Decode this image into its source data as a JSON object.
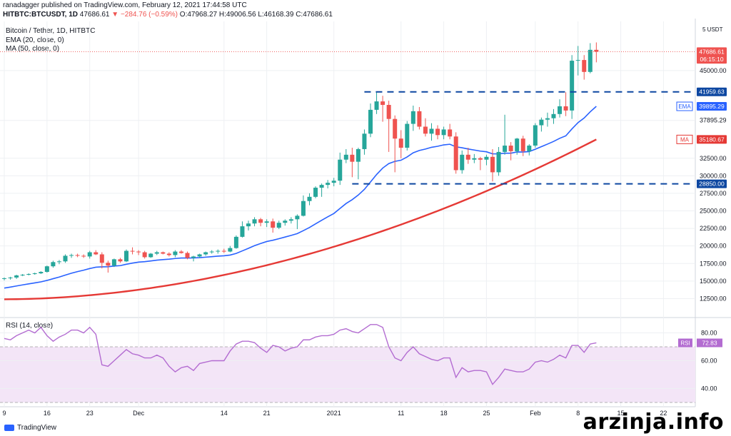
{
  "header": {
    "publisher_line": "ranadagger published on TradingView.com, February 12, 2021 17:44:58 UTC",
    "symbol": "HITBTC:BTCUSDT, 1D",
    "last": "47686.61",
    "change": "▼ −284.76 (−0.59%)",
    "o": "O:47968.27",
    "h": "H:49006.56",
    "l": "L:46168.39",
    "c": "C:47686.61"
  },
  "legend": {
    "title": "Bitcoin / Tether, 1D, HITBTC",
    "ema": "EMA (20, close, 0)",
    "ma": "MA (50, close, 0)",
    "rsi": "RSI (14, close)"
  },
  "colors": {
    "up": "#26a69a",
    "down": "#ef5350",
    "ema": "#2962ff",
    "ma": "#e53935",
    "support_line": "#0d47a1",
    "rsi_line": "#b36cd1",
    "rsi_band": "#f3e5f7",
    "grid": "#eef0f3"
  },
  "chart_data": [
    {
      "type": "candlestick",
      "title": "Bitcoin / Tether, 1D, HITBTC",
      "currency": "USDT",
      "ylim": [
        10000,
        52000
      ],
      "yticks": [
        12500,
        15000,
        17500,
        20000,
        22500,
        25000,
        27500,
        30000,
        32500,
        37895.29,
        45000
      ],
      "ytick_labels": [
        "12500.00",
        "15000.00",
        "17500.00",
        "20000.00",
        "22500.00",
        "25000.00",
        "27500.00",
        "30000.00",
        "32500.00",
        "37895.29",
        "45000.00"
      ],
      "xtick_labels": [
        "9",
        "16",
        "23",
        "Dec",
        "14",
        "21",
        "2021",
        "11",
        "18",
        "25",
        "Feb",
        "8",
        "15",
        "22"
      ],
      "xtick_index": [
        0,
        7,
        14,
        22,
        36,
        43,
        54,
        65,
        72,
        79,
        87,
        94,
        101,
        108
      ],
      "price_labels": [
        {
          "text": "47686.61",
          "value": 47686.61,
          "color": "#ef5350"
        },
        {
          "text": "06:15:10",
          "value": 46600,
          "color": "#ef5350"
        },
        {
          "text": "41959.63",
          "value": 41959.63,
          "color": "#0d47a1"
        },
        {
          "text": "39895.29",
          "value": 39895.29,
          "color": "#2962ff"
        },
        {
          "text": "35180.67",
          "value": 35180.67,
          "color": "#e53935"
        },
        {
          "text": "28850.00",
          "value": 28850,
          "color": "#0d47a1"
        }
      ],
      "series_tags": [
        {
          "text": "EMA",
          "value": 39895.29,
          "color": "#2962ff"
        },
        {
          "text": "MA",
          "value": 35180.67,
          "color": "#e53935"
        }
      ],
      "horizontal_lines": [
        {
          "value": 41959.63,
          "from_index": 59,
          "style": "dashed"
        },
        {
          "value": 28850,
          "from_index": 57,
          "style": "dashed"
        }
      ],
      "candles": [
        [
          15300,
          15500,
          15100,
          15400
        ],
        [
          15400,
          15600,
          15200,
          15500
        ],
        [
          15500,
          15900,
          15300,
          15800
        ],
        [
          15800,
          16000,
          15700,
          15900
        ],
        [
          15900,
          16100,
          15800,
          16000
        ],
        [
          16000,
          16200,
          15900,
          16100
        ],
        [
          16100,
          16400,
          16000,
          16300
        ],
        [
          16300,
          17200,
          16200,
          17100
        ],
        [
          17100,
          17900,
          16900,
          17700
        ],
        [
          17700,
          18000,
          17400,
          17800
        ],
        [
          17800,
          18800,
          17600,
          18600
        ],
        [
          18600,
          18900,
          18300,
          18700
        ],
        [
          18700,
          18900,
          18400,
          18600
        ],
        [
          18600,
          18800,
          18300,
          18500
        ],
        [
          18500,
          19300,
          18200,
          19100
        ],
        [
          19100,
          19400,
          18700,
          18800
        ],
        [
          18800,
          19100,
          16800,
          17600
        ],
        [
          17600,
          17900,
          16200,
          17200
        ],
        [
          17200,
          18200,
          17000,
          18100
        ],
        [
          18100,
          18300,
          17600,
          17800
        ],
        [
          17800,
          19500,
          17700,
          19300
        ],
        [
          19300,
          19800,
          18800,
          19200
        ],
        [
          19200,
          19400,
          18700,
          19100
        ],
        [
          19100,
          19300,
          18200,
          18400
        ],
        [
          18400,
          19000,
          18300,
          18900
        ],
        [
          18900,
          19300,
          18700,
          19100
        ],
        [
          19100,
          19200,
          18800,
          18900
        ],
        [
          18900,
          19100,
          18500,
          18700
        ],
        [
          18700,
          19400,
          18400,
          19200
        ],
        [
          19200,
          19400,
          18900,
          19000
        ],
        [
          19000,
          19200,
          18100,
          18300
        ],
        [
          18300,
          18600,
          17800,
          18500
        ],
        [
          18500,
          18900,
          18300,
          18800
        ],
        [
          18800,
          19200,
          18600,
          19100
        ],
        [
          19100,
          19400,
          18900,
          19200
        ],
        [
          19200,
          19500,
          18900,
          19300
        ],
        [
          19300,
          19600,
          19000,
          19200
        ],
        [
          19200,
          20000,
          19100,
          19700
        ],
        [
          19700,
          21500,
          19600,
          21300
        ],
        [
          21300,
          23500,
          21200,
          22800
        ],
        [
          22800,
          23600,
          22200,
          23200
        ],
        [
          23200,
          24100,
          22800,
          23800
        ],
        [
          23800,
          24000,
          22800,
          23300
        ],
        [
          23300,
          23800,
          22700,
          23500
        ],
        [
          23500,
          23900,
          21900,
          22600
        ],
        [
          22600,
          23600,
          22400,
          23300
        ],
        [
          23300,
          23800,
          22900,
          23600
        ],
        [
          23600,
          24100,
          23200,
          23800
        ],
        [
          23800,
          24500,
          22400,
          24300
        ],
        [
          24300,
          27200,
          24200,
          26400
        ],
        [
          26400,
          27500,
          25800,
          27000
        ],
        [
          27000,
          28500,
          26800,
          28300
        ],
        [
          28300,
          28900,
          27000,
          28700
        ],
        [
          28700,
          29400,
          28200,
          29000
        ],
        [
          29000,
          29700,
          28500,
          29300
        ],
        [
          29300,
          33300,
          28700,
          32300
        ],
        [
          32300,
          33800,
          31800,
          33000
        ],
        [
          33000,
          34000,
          29800,
          32000
        ],
        [
          32000,
          34000,
          29500,
          33800
        ],
        [
          33800,
          36600,
          33000,
          36000
        ],
        [
          36000,
          40300,
          35500,
          39400
        ],
        [
          39400,
          41900,
          38800,
          40600
        ],
        [
          40600,
          41400,
          37700,
          40100
        ],
        [
          40100,
          40700,
          33400,
          38100
        ],
        [
          38100,
          38600,
          30500,
          35300
        ],
        [
          35300,
          36500,
          32500,
          34000
        ],
        [
          34000,
          37800,
          33600,
          37400
        ],
        [
          37400,
          40000,
          36400,
          39200
        ],
        [
          39200,
          39800,
          36600,
          37000
        ],
        [
          37000,
          38200,
          35600,
          36000
        ],
        [
          36000,
          37500,
          35000,
          36700
        ],
        [
          36700,
          37200,
          35200,
          35800
        ],
        [
          35800,
          37000,
          35200,
          36600
        ],
        [
          36600,
          37400,
          35200,
          35600
        ],
        [
          35600,
          36200,
          30300,
          30800
        ],
        [
          30800,
          33600,
          30300,
          33000
        ],
        [
          33000,
          34000,
          31700,
          32300
        ],
        [
          32300,
          33100,
          31800,
          32500
        ],
        [
          32500,
          32700,
          30800,
          32300
        ],
        [
          32300,
          33000,
          31500,
          32700
        ],
        [
          32700,
          33800,
          29200,
          30500
        ],
        [
          30500,
          34100,
          30000,
          33400
        ],
        [
          33400,
          38700,
          33000,
          34300
        ],
        [
          34300,
          34800,
          32200,
          33500
        ],
        [
          33500,
          35400,
          33000,
          35300
        ],
        [
          35300,
          35700,
          32800,
          33500
        ],
        [
          33500,
          34500,
          32900,
          34300
        ],
        [
          34300,
          37500,
          34000,
          37200
        ],
        [
          37200,
          38300,
          36300,
          38000
        ],
        [
          38000,
          39000,
          37000,
          38200
        ],
        [
          38200,
          39500,
          37400,
          38800
        ],
        [
          38800,
          40900,
          38300,
          39900
        ],
        [
          39900,
          41900,
          38500,
          39300
        ],
        [
          39300,
          47200,
          38100,
          46400
        ],
        [
          46400,
          48500,
          44300,
          46500
        ],
        [
          46500,
          47200,
          43700,
          44800
        ],
        [
          44800,
          48900,
          44600,
          47950
        ],
        [
          47950,
          49006,
          46168,
          47686
        ]
      ],
      "ema_last": 39895.29,
      "ma_last": 35180.67
    },
    {
      "type": "line",
      "title": "RSI (14, close)",
      "ylim": [
        30,
        90
      ],
      "yticks": [
        40,
        60,
        80
      ],
      "ytick_labels": [
        "40.00",
        "60.00",
        "80.00"
      ],
      "band": [
        30,
        70
      ],
      "last_label": "72.83",
      "tag": "RSI",
      "values": [
        76,
        75,
        78,
        80,
        82,
        80,
        84,
        78,
        74,
        77,
        79,
        82,
        82,
        80,
        84,
        79,
        57,
        56,
        60,
        64,
        68,
        65,
        64,
        62,
        62,
        64,
        62,
        56,
        52,
        55,
        56,
        53,
        58,
        59,
        60,
        60,
        60,
        67,
        72,
        74,
        74,
        73,
        69,
        66,
        71,
        70,
        67,
        69,
        70,
        75,
        75,
        77,
        78,
        78,
        79,
        82,
        83,
        81,
        80,
        83,
        86,
        86,
        84,
        70,
        62,
        60,
        66,
        70,
        65,
        63,
        61,
        60,
        62,
        62,
        48,
        55,
        52,
        53,
        53,
        52,
        43,
        48,
        54,
        53,
        52,
        52,
        54,
        59,
        60,
        59,
        61,
        64,
        62,
        71,
        71,
        66,
        72,
        72.83
      ]
    }
  ],
  "watermark": "arzinja.info",
  "brand": "TradingView"
}
